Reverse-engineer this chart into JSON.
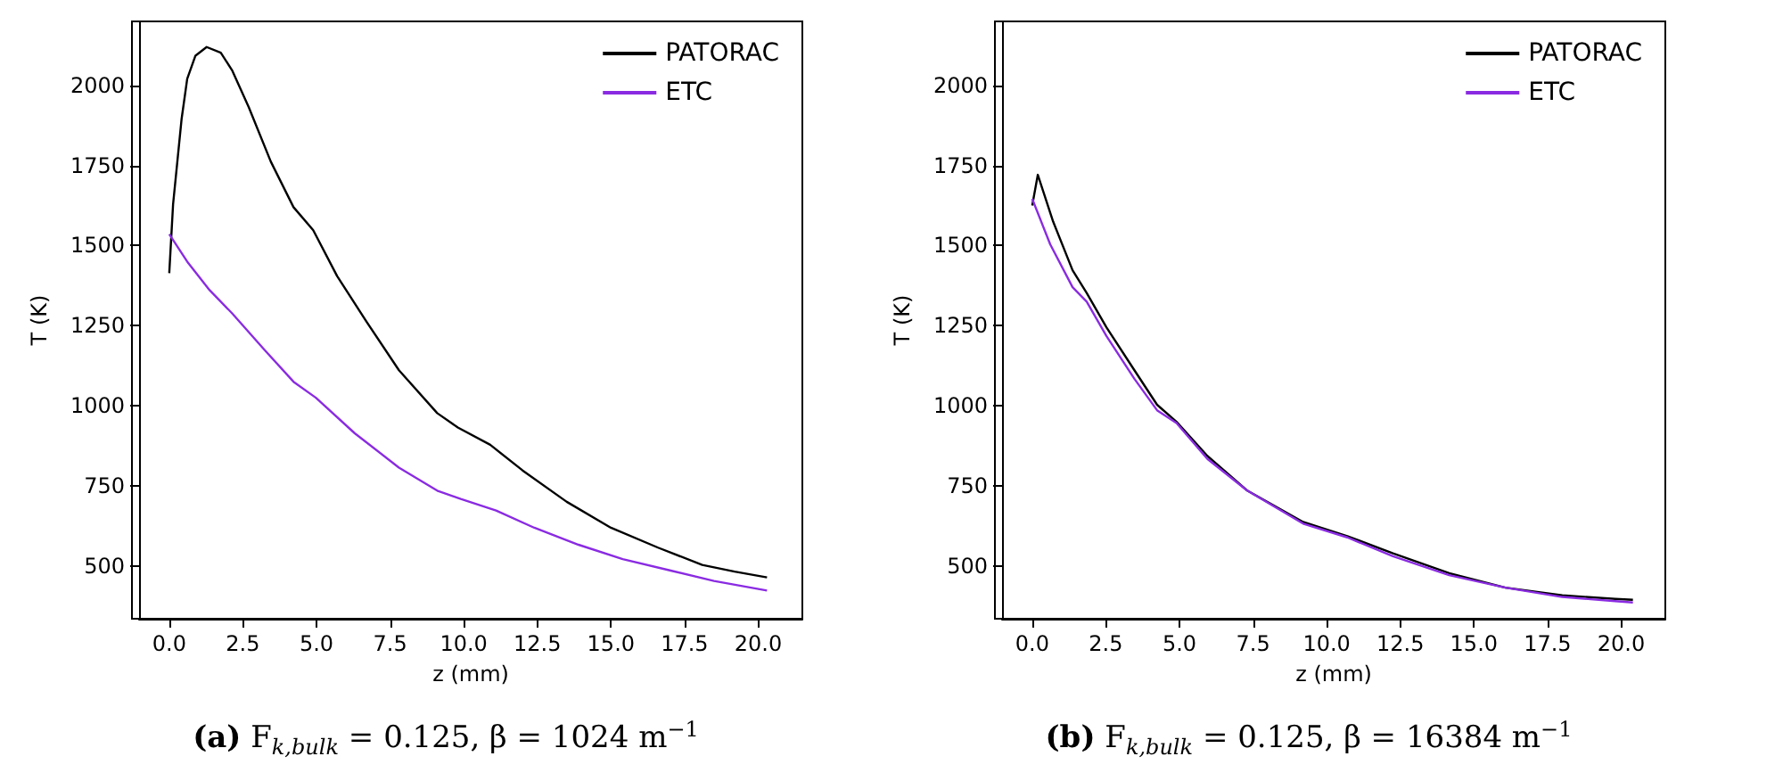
{
  "chart_data": [
    {
      "type": "line",
      "title": "(a) F$_{k,bulk}$ = 0.125, β = 1024 m$^{−1}$",
      "xlabel": "z (mm)",
      "ylabel": "T (K)",
      "legend": "top right",
      "grid": false,
      "xlim": [
        -1.025,
        21.5
      ],
      "ylim": [
        335,
        2200
      ],
      "xticks": [
        {
          "value": 0,
          "label": "0.0"
        },
        {
          "value": 2.5,
          "label": "2.5"
        },
        {
          "value": 5,
          "label": "5.0"
        },
        {
          "value": 7.5,
          "label": "7.5"
        },
        {
          "value": 10,
          "label": "10.0"
        },
        {
          "value": 12.5,
          "label": "12.5"
        },
        {
          "value": 15,
          "label": "15.0"
        },
        {
          "value": 17.5,
          "label": "17.5"
        },
        {
          "value": 20,
          "label": "20.0"
        }
      ],
      "yticks": [
        500,
        750,
        1000,
        1250,
        1500,
        1750,
        2000
      ],
      "series": [
        {
          "name": "PATORAC",
          "color": "#000000",
          "x": [
            0,
            0.13,
            0.42,
            0.61,
            0.89,
            1.27,
            1.75,
            2.13,
            2.7,
            3.45,
            4.22,
            4.89,
            5.7,
            6.7,
            7.8,
            9.1,
            9.8,
            10.9,
            12.0,
            13.5,
            15.0,
            16.6,
            18.1,
            19.2,
            20.3
          ],
          "values": [
            1414,
            1629,
            1896,
            2021,
            2093,
            2120,
            2102,
            2048,
            1932,
            1762,
            1620,
            1548,
            1405,
            1262,
            1111,
            977,
            932,
            878,
            798,
            700,
            619,
            557,
            503,
            482,
            464
          ]
        },
        {
          "name": "ETC",
          "color": "#8a2be2",
          "x": [
            0,
            0.61,
            1.37,
            2.13,
            3.25,
            4.22,
            4.98,
            6.3,
            7.8,
            9.1,
            9.9,
            11.1,
            12.4,
            13.9,
            15.4,
            17.0,
            18.5,
            20.3
          ],
          "values": [
            1536,
            1450,
            1361,
            1289,
            1173,
            1075,
            1025,
            914,
            807,
            735,
            709,
            673,
            619,
            566,
            521,
            486,
            453,
            423
          ]
        }
      ]
    },
    {
      "type": "line",
      "title": "(b) F$_{k,bulk}$ = 0.125, β = 16384 m$^{−1}$",
      "xlabel": "z (mm)",
      "ylabel": "T (K)",
      "legend": "top right",
      "grid": false,
      "xlim": [
        -1.025,
        21.5
      ],
      "ylim": [
        335,
        2200
      ],
      "xticks": [
        {
          "value": 0,
          "label": "0.0"
        },
        {
          "value": 2.5,
          "label": "2.5"
        },
        {
          "value": 5,
          "label": "5.0"
        },
        {
          "value": 7.5,
          "label": "7.5"
        },
        {
          "value": 10,
          "label": "10.0"
        },
        {
          "value": 12.5,
          "label": "12.5"
        },
        {
          "value": 15,
          "label": "15.0"
        },
        {
          "value": 17.5,
          "label": "17.5"
        },
        {
          "value": 20,
          "label": "20.0"
        }
      ],
      "yticks": [
        500,
        750,
        1000,
        1250,
        1500,
        1750,
        2000
      ],
      "series": [
        {
          "name": "PATORAC",
          "color": "#000000",
          "x": [
            0,
            0.19,
            0.71,
            1.37,
            1.85,
            2.52,
            3.47,
            4.24,
            4.9,
            5.95,
            7.29,
            9.2,
            10.7,
            12.25,
            14.16,
            16.07,
            18.0,
            19.8,
            20.4
          ],
          "values": [
            1625,
            1721,
            1575,
            1423,
            1352,
            1245,
            1111,
            1003,
            950,
            843,
            736,
            637,
            593,
            539,
            477,
            432,
            408,
            397,
            394
          ]
        },
        {
          "name": "ETC",
          "color": "#8a2be2",
          "x": [
            0,
            0.61,
            1.37,
            1.85,
            2.52,
            3.47,
            4.24,
            4.9,
            5.95,
            7.29,
            9.2,
            10.7,
            12.25,
            14.16,
            16.07,
            18.0,
            19.8,
            20.4
          ],
          "values": [
            1646,
            1504,
            1370,
            1325,
            1218,
            1084,
            986,
            946,
            834,
            736,
            632,
            589,
            530,
            471,
            432,
            403,
            390,
            386
          ]
        }
      ]
    }
  ]
}
